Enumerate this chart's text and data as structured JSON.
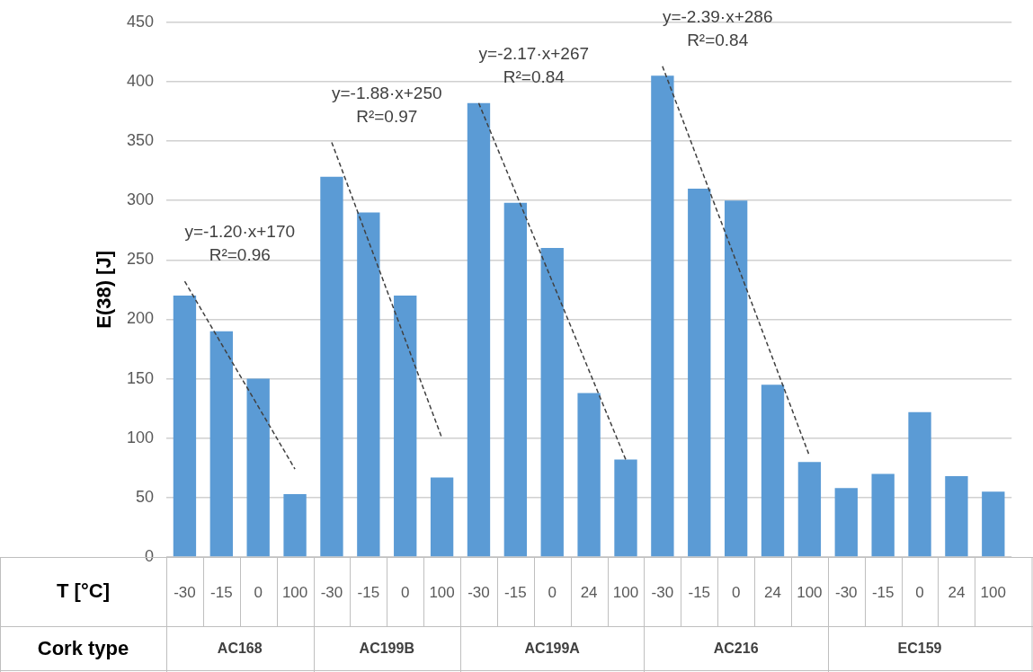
{
  "chart_data": {
    "type": "bar",
    "ylabel": "E(38) [J]",
    "xlabel": "T [°C]",
    "categories": [
      "-30",
      "-15",
      "0",
      "100",
      "-30",
      "-15",
      "0",
      "100",
      "-30",
      "-15",
      "0",
      "24",
      "100",
      "-30",
      "-15",
      "0",
      "24",
      "100",
      "-30",
      "-15",
      "0",
      "24",
      "100"
    ],
    "series": [
      {
        "color": "#5b9bd5",
        "values": [
          220,
          190,
          150,
          53,
          null,
          null,
          null,
          null,
          null,
          null,
          null,
          null,
          null,
          null,
          null,
          null,
          null,
          null,
          null,
          null,
          null,
          null,
          null
        ]
      },
      {
        "color": "#5b9bd5",
        "values": [
          null,
          null,
          null,
          null,
          320,
          290,
          220,
          67,
          null,
          null,
          null,
          null,
          null,
          null,
          null,
          null,
          null,
          null,
          null,
          null,
          null,
          null,
          null
        ]
      },
      {
        "color": "#5b9bd5",
        "values": [
          null,
          null,
          null,
          null,
          null,
          null,
          null,
          null,
          382,
          298,
          260,
          138,
          82,
          null,
          null,
          null,
          null,
          null,
          null,
          null,
          null,
          null,
          null
        ]
      },
      {
        "color": "#5b9bd5",
        "values": [
          null,
          null,
          null,
          null,
          null,
          null,
          null,
          null,
          null,
          null,
          null,
          null,
          null,
          405,
          310,
          300,
          145,
          80,
          null,
          null,
          null,
          null,
          null
        ]
      },
      {
        "color": "#5b9bd5",
        "values": [
          null,
          null,
          null,
          null,
          null,
          null,
          null,
          null,
          null,
          null,
          null,
          null,
          null,
          null,
          null,
          null,
          null,
          null,
          58,
          70,
          122,
          68,
          55
        ]
      },
      {
        "type": "line",
        "color": "#404040",
        "line_style": "dashed",
        "marker": "none",
        "values": [
          232,
          null,
          null,
          74,
          null,
          null,
          null,
          null,
          null,
          null,
          null,
          null,
          null,
          null,
          null,
          null,
          null,
          null,
          null,
          null,
          null,
          null,
          null
        ]
      },
      {
        "type": "line",
        "color": "#404040",
        "line_style": "dashed",
        "marker": "none",
        "values": [
          null,
          null,
          null,
          null,
          349,
          null,
          null,
          100,
          null,
          null,
          null,
          null,
          null,
          null,
          null,
          null,
          null,
          null,
          null,
          null,
          null,
          null,
          null
        ]
      },
      {
        "type": "line",
        "color": "#404040",
        "line_style": "dashed",
        "marker": "none",
        "values": [
          null,
          null,
          null,
          null,
          null,
          null,
          null,
          null,
          382,
          null,
          null,
          null,
          82,
          null,
          null,
          null,
          null,
          null,
          null,
          null,
          null,
          null,
          null
        ]
      },
      {
        "type": "line",
        "color": "#404040",
        "line_style": "dashed",
        "marker": "none",
        "values": [
          null,
          null,
          null,
          null,
          null,
          null,
          null,
          null,
          null,
          null,
          null,
          null,
          null,
          413,
          null,
          null,
          null,
          85,
          null,
          null,
          null,
          null,
          null
        ]
      }
    ],
    "ylim": [
      0,
      450
    ],
    "yticks": [
      0,
      50,
      100,
      150,
      200,
      250,
      300,
      350,
      400,
      450
    ],
    "grid": "y",
    "legend": false,
    "annotations": [
      "Cork type",
      "AC168",
      "AC199B",
      "AC199A",
      "AC216",
      "EC159",
      "y=-1.20·x+170",
      "R²=0.96",
      "y=-1.88·x+250",
      "R²=0.97",
      "y=-2.17·x+267",
      "R²=0.84",
      "y=-2.39·x+286",
      "R²=0.84"
    ]
  }
}
